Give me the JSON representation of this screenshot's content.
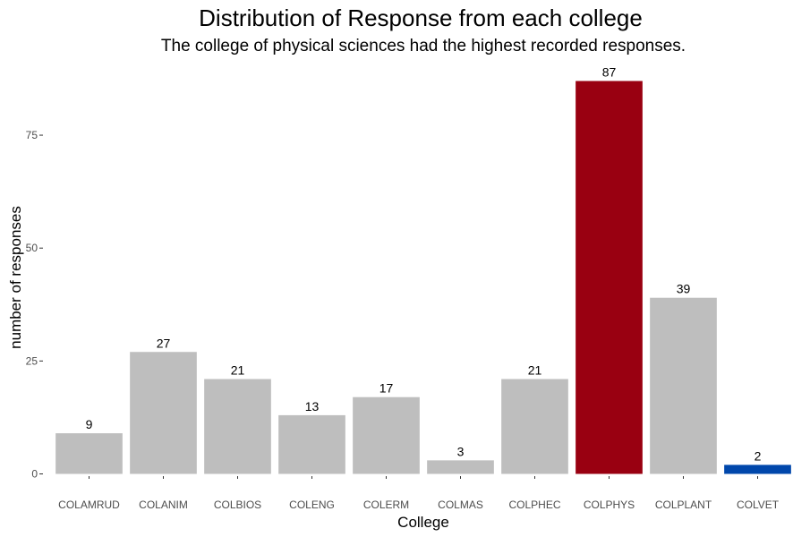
{
  "chart_data": {
    "type": "bar",
    "title": "Distribution of Response from each college",
    "subtitle": "The college of physical sciences had the highest recorded responses.",
    "xlabel": "College",
    "ylabel": "number of responses",
    "categories": [
      "COLAMRUD",
      "COLANIM",
      "COLBIOS",
      "COLENG",
      "COLERM",
      "COLMAS",
      "COLPHEC",
      "COLPHYS",
      "COLPLANT",
      "COLVET"
    ],
    "values": [
      9,
      27,
      21,
      13,
      17,
      3,
      21,
      87,
      39,
      2
    ],
    "value_labels": [
      "9",
      "27",
      "21",
      "13",
      "17",
      "3",
      "21",
      "87",
      "39",
      "2"
    ],
    "colors": [
      "#bebebe",
      "#bebebe",
      "#bebebe",
      "#bebebe",
      "#bebebe",
      "#bebebe",
      "#bebebe",
      "#990011",
      "#bebebe",
      "#0047ab"
    ],
    "yticks": [
      0,
      25,
      50,
      75
    ],
    "ytick_labels": [
      "0",
      "25",
      "50",
      "75"
    ],
    "ylim": [
      0,
      87
    ],
    "grid": false,
    "legend": "none"
  }
}
